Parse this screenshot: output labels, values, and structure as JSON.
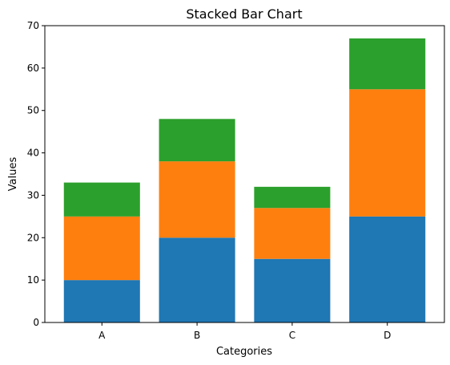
{
  "chart_data": {
    "type": "bar",
    "stacked": true,
    "title": "Stacked Bar Chart",
    "xlabel": "Categories",
    "ylabel": "Values",
    "categories": [
      "A",
      "B",
      "C",
      "D"
    ],
    "series": [
      {
        "values": [
          10,
          20,
          15,
          25
        ],
        "color": "#1f77b4"
      },
      {
        "values": [
          15,
          18,
          12,
          30
        ],
        "color": "#ff7f0e"
      },
      {
        "values": [
          8,
          10,
          5,
          12
        ],
        "color": "#2ca02c"
      }
    ],
    "ylim": [
      0,
      70
    ],
    "yticks": [
      0,
      10,
      20,
      30,
      40,
      50,
      60,
      70
    ],
    "grid": false
  }
}
